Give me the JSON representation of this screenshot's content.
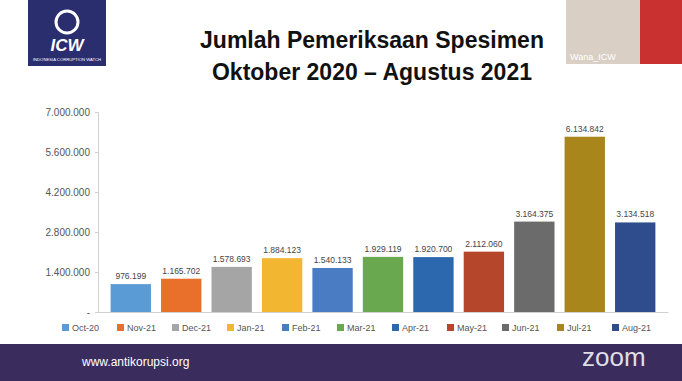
{
  "chart_data": {
    "type": "bar",
    "title": "Jumlah Pemeriksaan Spesimen",
    "subtitle": "Oktober 2020 – Agustus 2021",
    "categories": [
      "Oct-20",
      "Nov-21",
      "Dec-21",
      "Jan-21",
      "Feb-21",
      "Mar-21",
      "Apr-21",
      "May-21",
      "Jun-21",
      "Jul-21",
      "Aug-21"
    ],
    "values": [
      976199,
      1165702,
      1578693,
      1884123,
      1540133,
      1929119,
      1920700,
      2112060,
      3164375,
      6134842,
      3134518
    ],
    "value_labels": [
      "976.199",
      "1.165.702",
      "1.578.693",
      "1.884.123",
      "1.540.133",
      "1.929.119",
      "1.920.700",
      "2.112.060",
      "3.164.375",
      "6.134.842",
      "3.134.518"
    ],
    "colors": [
      "#5b9bd5",
      "#e8702a",
      "#a5a5a5",
      "#f2b630",
      "#4a7cc4",
      "#6aa84f",
      "#2c68ad",
      "#b5452b",
      "#6b6b6b",
      "#a8861c",
      "#2f4c8c"
    ],
    "ylim": [
      0,
      7000000
    ],
    "yticks": [
      {
        "value": 0,
        "label": "-"
      },
      {
        "value": 1400000,
        "label": "1.400.000"
      },
      {
        "value": 2800000,
        "label": "2.800.000"
      },
      {
        "value": 4200000,
        "label": "4.200.000"
      },
      {
        "value": 5600000,
        "label": "5.600.000"
      },
      {
        "value": 7000000,
        "label": "7.000.000"
      }
    ],
    "grid": false,
    "legend": "bottom",
    "data_labels": true,
    "tick_labels": "y"
  },
  "header": {
    "logo": "ICW",
    "logo_subtitle": "INDONESIA CORRUPTION WATCH",
    "webcam_label": "Wana_ICW"
  },
  "footer": {
    "url": "www.antikorupsi.org",
    "watermark": "zoom"
  }
}
